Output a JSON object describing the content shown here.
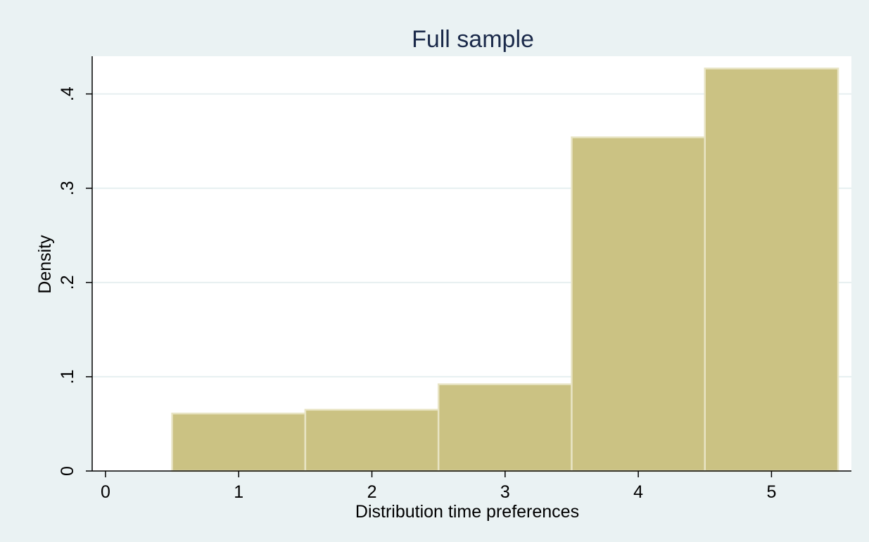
{
  "chart_data": {
    "type": "bar",
    "title": "Full sample",
    "xlabel": "Distribution time preferences",
    "ylabel": "Density",
    "bins": [
      {
        "start": 0.5,
        "end": 1.5,
        "value": 0.061
      },
      {
        "start": 1.5,
        "end": 2.5,
        "value": 0.065
      },
      {
        "start": 2.5,
        "end": 3.5,
        "value": 0.092
      },
      {
        "start": 3.5,
        "end": 4.5,
        "value": 0.354
      },
      {
        "start": 4.5,
        "end": 5.5,
        "value": 0.427
      }
    ],
    "xticks": [
      0,
      1,
      2,
      3,
      4,
      5
    ],
    "xtick_labels": [
      "0",
      "1",
      "2",
      "3",
      "4",
      "5"
    ],
    "yticks": [
      0,
      0.1,
      0.2,
      0.3,
      0.4
    ],
    "ytick_labels": [
      "0",
      ".1",
      ".2",
      ".3",
      ".4"
    ],
    "xlim": [
      -0.1,
      5.6
    ],
    "ylim": [
      0,
      0.44
    ],
    "grid": "horizontal",
    "legend": "none"
  },
  "colors": {
    "outer_background": "#eaf2f3",
    "plot_background": "#ffffff",
    "bar_fill": "#cbc283",
    "bar_edge": "#e8e4c4",
    "grid": "#e6eff0",
    "axis": "#000000",
    "title": "#1b2a4a"
  }
}
